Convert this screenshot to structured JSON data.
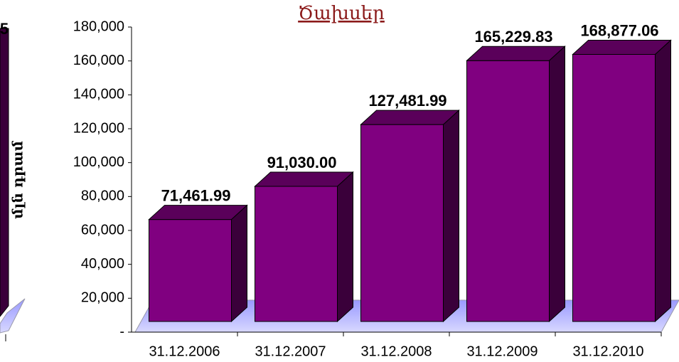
{
  "chart_data": {
    "type": "bar3d",
    "title": "Ծախսեր",
    "y_label": "մլն դրամ",
    "categories": [
      "31.12.2006",
      "31.12.2007",
      "31.12.2008",
      "31.12.2009",
      "31.12.2010"
    ],
    "values": [
      71461.99,
      91030.0,
      127481.99,
      165229.83,
      168877.06
    ],
    "value_labels": [
      "71,461.99",
      "91,030.00",
      "127,481.99",
      "165,229.83",
      "168,877.06"
    ],
    "color": "#800080",
    "ylim": [
      0,
      180000
    ],
    "yticks": [
      {
        "value": 0,
        "label": "-"
      },
      {
        "value": 20000,
        "label": "20,000"
      },
      {
        "value": 40000,
        "label": "40,000"
      },
      {
        "value": 60000,
        "label": "60,000"
      },
      {
        "value": 80000,
        "label": "80,000"
      },
      {
        "value": 100000,
        "label": "100,000"
      },
      {
        "value": 120000,
        "label": "120,000"
      },
      {
        "value": 140000,
        "label": "140,000"
      },
      {
        "value": 160000,
        "label": "160,000"
      },
      {
        "value": 180000,
        "label": "180,000"
      }
    ],
    "annotation": "5"
  }
}
